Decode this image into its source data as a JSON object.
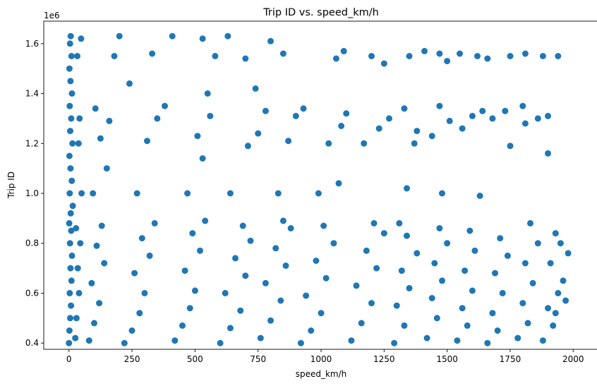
{
  "chart_data": {
    "type": "scatter",
    "title": "Trip ID vs. speed_km/h",
    "xlabel": "speed_km/h",
    "ylabel": "Trip ID",
    "y_offset_label": "1e6",
    "xlim": [
      -100,
      2100
    ],
    "ylim": [
      375000,
      1690000
    ],
    "xticks": [
      0,
      250,
      500,
      750,
      1000,
      1250,
      1500,
      1750,
      2000
    ],
    "xtick_labels": [
      "0",
      "250",
      "500",
      "750",
      "1000",
      "1250",
      "1500",
      "1750",
      "2000"
    ],
    "yticks": [
      400000,
      600000,
      800000,
      1000000,
      1200000,
      1400000,
      1600000
    ],
    "ytick_labels": [
      "0.4",
      "0.6",
      "0.8",
      "1.0",
      "1.2",
      "1.4",
      "1.6"
    ],
    "grid": false,
    "color": "#1f77b4",
    "points": [
      [
        0,
        400000
      ],
      [
        2,
        450000
      ],
      [
        5,
        500000
      ],
      [
        8,
        550000
      ],
      [
        3,
        600000
      ],
      [
        10,
        650000
      ],
      [
        6,
        700000
      ],
      [
        12,
        750000
      ],
      [
        4,
        800000
      ],
      [
        9,
        850000
      ],
      [
        1,
        880000
      ],
      [
        7,
        920000
      ],
      [
        15,
        950000
      ],
      [
        3,
        1000000
      ],
      [
        11,
        1050000
      ],
      [
        6,
        1100000
      ],
      [
        2,
        1150000
      ],
      [
        14,
        1200000
      ],
      [
        5,
        1250000
      ],
      [
        9,
        1300000
      ],
      [
        3,
        1350000
      ],
      [
        12,
        1400000
      ],
      [
        6,
        1450000
      ],
      [
        2,
        1500000
      ],
      [
        10,
        1550000
      ],
      [
        4,
        1600000
      ],
      [
        7,
        1630000
      ],
      [
        25,
        420000
      ],
      [
        30,
        500000
      ],
      [
        40,
        600000
      ],
      [
        35,
        700000
      ],
      [
        45,
        800000
      ],
      [
        28,
        860000
      ],
      [
        50,
        1000000
      ],
      [
        38,
        1200000
      ],
      [
        42,
        1300000
      ],
      [
        33,
        1550000
      ],
      [
        48,
        1620000
      ],
      [
        80,
        410000
      ],
      [
        100,
        480000
      ],
      [
        120,
        560000
      ],
      [
        90,
        640000
      ],
      [
        140,
        720000
      ],
      [
        110,
        790000
      ],
      [
        130,
        870000
      ],
      [
        95,
        1000000
      ],
      [
        150,
        1100000
      ],
      [
        125,
        1220000
      ],
      [
        160,
        1290000
      ],
      [
        105,
        1340000
      ],
      [
        180,
        1550000
      ],
      [
        200,
        1630000
      ],
      [
        220,
        400000
      ],
      [
        250,
        450000
      ],
      [
        280,
        520000
      ],
      [
        300,
        600000
      ],
      [
        260,
        680000
      ],
      [
        320,
        750000
      ],
      [
        290,
        820000
      ],
      [
        340,
        880000
      ],
      [
        270,
        1000000
      ],
      [
        310,
        1210000
      ],
      [
        350,
        1300000
      ],
      [
        380,
        1350000
      ],
      [
        240,
        1440000
      ],
      [
        330,
        1560000
      ],
      [
        410,
        1630000
      ],
      [
        420,
        410000
      ],
      [
        450,
        470000
      ],
      [
        480,
        540000
      ],
      [
        500,
        610000
      ],
      [
        460,
        690000
      ],
      [
        520,
        770000
      ],
      [
        490,
        840000
      ],
      [
        540,
        890000
      ],
      [
        470,
        1000000
      ],
      [
        530,
        1140000
      ],
      [
        510,
        1230000
      ],
      [
        560,
        1310000
      ],
      [
        550,
        1400000
      ],
      [
        580,
        1550000
      ],
      [
        530,
        1620000
      ],
      [
        630,
        1630000
      ],
      [
        600,
        400000
      ],
      [
        640,
        460000
      ],
      [
        680,
        530000
      ],
      [
        620,
        600000
      ],
      [
        700,
        670000
      ],
      [
        660,
        740000
      ],
      [
        720,
        810000
      ],
      [
        690,
        870000
      ],
      [
        640,
        1000000
      ],
      [
        710,
        1190000
      ],
      [
        750,
        1240000
      ],
      [
        780,
        1330000
      ],
      [
        740,
        1420000
      ],
      [
        700,
        1540000
      ],
      [
        800,
        1610000
      ],
      [
        760,
        420000
      ],
      [
        800,
        490000
      ],
      [
        840,
        570000
      ],
      [
        780,
        640000
      ],
      [
        860,
        710000
      ],
      [
        820,
        780000
      ],
      [
        880,
        860000
      ],
      [
        850,
        890000
      ],
      [
        830,
        1000000
      ],
      [
        870,
        1210000
      ],
      [
        900,
        1310000
      ],
      [
        930,
        1340000
      ],
      [
        850,
        1560000
      ],
      [
        920,
        400000
      ],
      [
        960,
        450000
      ],
      [
        1000,
        520000
      ],
      [
        940,
        590000
      ],
      [
        1020,
        660000
      ],
      [
        980,
        730000
      ],
      [
        1050,
        800000
      ],
      [
        1010,
        870000
      ],
      [
        990,
        1000000
      ],
      [
        1070,
        1040000
      ],
      [
        1030,
        1200000
      ],
      [
        1080,
        1270000
      ],
      [
        1100,
        1320000
      ],
      [
        1060,
        1540000
      ],
      [
        1090,
        1570000
      ],
      [
        1120,
        410000
      ],
      [
        1160,
        480000
      ],
      [
        1200,
        560000
      ],
      [
        1140,
        630000
      ],
      [
        1220,
        700000
      ],
      [
        1180,
        770000
      ],
      [
        1250,
        840000
      ],
      [
        1210,
        880000
      ],
      [
        1170,
        1200000
      ],
      [
        1230,
        1260000
      ],
      [
        1270,
        1300000
      ],
      [
        1200,
        1550000
      ],
      [
        1250,
        1520000
      ],
      [
        1290,
        400000
      ],
      [
        1330,
        470000
      ],
      [
        1300,
        550000
      ],
      [
        1350,
        620000
      ],
      [
        1320,
        690000
      ],
      [
        1380,
        760000
      ],
      [
        1340,
        830000
      ],
      [
        1310,
        880000
      ],
      [
        1340,
        1020000
      ],
      [
        1370,
        1200000
      ],
      [
        1330,
        1340000
      ],
      [
        1380,
        1250000
      ],
      [
        1410,
        1570000
      ],
      [
        1350,
        1550000
      ],
      [
        1420,
        420000
      ],
      [
        1460,
        500000
      ],
      [
        1440,
        580000
      ],
      [
        1480,
        650000
      ],
      [
        1450,
        720000
      ],
      [
        1500,
        800000
      ],
      [
        1470,
        860000
      ],
      [
        1480,
        1000000
      ],
      [
        1440,
        1230000
      ],
      [
        1510,
        1290000
      ],
      [
        1470,
        1350000
      ],
      [
        1470,
        1560000
      ],
      [
        1500,
        1530000
      ],
      [
        1540,
        410000
      ],
      [
        1580,
        470000
      ],
      [
        1560,
        540000
      ],
      [
        1600,
        610000
      ],
      [
        1570,
        690000
      ],
      [
        1610,
        770000
      ],
      [
        1590,
        850000
      ],
      [
        1630,
        990000
      ],
      [
        1560,
        1260000
      ],
      [
        1600,
        1310000
      ],
      [
        1640,
        1330000
      ],
      [
        1550,
        1560000
      ],
      [
        1620,
        1550000
      ],
      [
        1660,
        400000
      ],
      [
        1700,
        450000
      ],
      [
        1680,
        520000
      ],
      [
        1720,
        600000
      ],
      [
        1690,
        680000
      ],
      [
        1740,
        750000
      ],
      [
        1710,
        820000
      ],
      [
        1750,
        1190000
      ],
      [
        1730,
        1330000
      ],
      [
        1680,
        1300000
      ],
      [
        1660,
        1540000
      ],
      [
        1750,
        1550000
      ],
      [
        1780,
        420000
      ],
      [
        1820,
        480000
      ],
      [
        1800,
        560000
      ],
      [
        1840,
        640000
      ],
      [
        1810,
        720000
      ],
      [
        1860,
        800000
      ],
      [
        1830,
        880000
      ],
      [
        1810,
        1280000
      ],
      [
        1860,
        1300000
      ],
      [
        1800,
        1350000
      ],
      [
        1810,
        1560000
      ],
      [
        1880,
        410000
      ],
      [
        1920,
        470000
      ],
      [
        1900,
        540000
      ],
      [
        1940,
        600000
      ],
      [
        1960,
        650000
      ],
      [
        1910,
        720000
      ],
      [
        1950,
        800000
      ],
      [
        1980,
        760000
      ],
      [
        1930,
        840000
      ],
      [
        1900,
        1160000
      ],
      [
        1900,
        1310000
      ],
      [
        1880,
        1550000
      ],
      [
        1940,
        1550000
      ],
      [
        1970,
        570000
      ],
      [
        1930,
        520000
      ]
    ]
  }
}
